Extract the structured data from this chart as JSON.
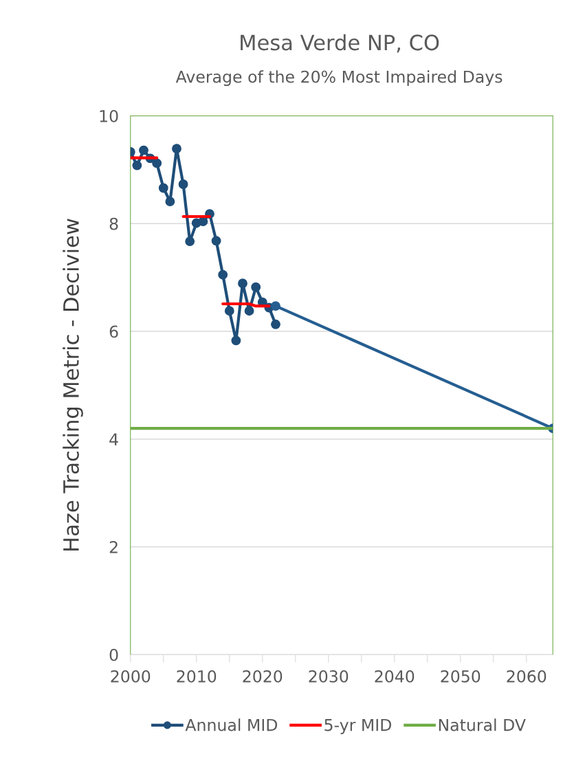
{
  "chart_data": {
    "type": "line",
    "title": "Mesa Verde NP, CO",
    "subtitle": "Average of the 20% Most Impaired Days",
    "ylabel": "Haze Tracking Metric - Deciview",
    "xlim": [
      2000,
      2064
    ],
    "ylim": [
      0,
      10
    ],
    "xticks": [
      2000,
      {
        "value": 2005,
        "label": null
      },
      2010,
      {
        "value": 2015,
        "label": null
      },
      2020,
      {
        "value": 2025,
        "label": null
      },
      2030,
      {
        "value": 2035,
        "label": null
      },
      2040,
      {
        "value": 2045,
        "label": null
      },
      2050,
      {
        "value": 2055,
        "label": null
      },
      2060
    ],
    "yticks": [
      0,
      2,
      4,
      6,
      8,
      10
    ],
    "grid": "y",
    "legend": "bottom",
    "series": [
      {
        "name": "Annual MID",
        "color": "#1f4e79",
        "marker": "circle",
        "x": [
          2000,
          2001,
          2002,
          2003,
          2004,
          2005,
          2006,
          2007,
          2008,
          2009,
          2010,
          2011,
          2012,
          2013,
          2014,
          2015,
          2016,
          2017,
          2018,
          2019,
          2020,
          2021,
          2022
        ],
        "values": [
          9.33,
          9.08,
          9.36,
          9.21,
          9.12,
          8.66,
          8.41,
          9.39,
          8.73,
          7.67,
          8.01,
          8.04,
          8.18,
          7.68,
          7.05,
          6.38,
          5.83,
          6.89,
          6.38,
          6.82,
          6.54,
          6.44,
          6.13
        ]
      },
      {
        "color": "#255e91",
        "marker": "circle",
        "x": [
          2022,
          2064
        ],
        "values": [
          6.47,
          4.2
        ]
      },
      {
        "name": "5-yr MID",
        "color": "#ff0000",
        "marker": "none",
        "x": [
          2000,
          2004,
          2005,
          2008,
          2012,
          2013,
          2014,
          2018,
          2019,
          2021
        ],
        "values": [
          9.22,
          9.22,
          null,
          8.13,
          8.13,
          null,
          6.51,
          6.51,
          6.47,
          6.47
        ]
      },
      {
        "name": "Natural DV",
        "color": "#70ad47",
        "marker": "none",
        "x": [
          2000,
          2064
        ],
        "values": [
          4.2,
          4.2
        ]
      }
    ]
  }
}
